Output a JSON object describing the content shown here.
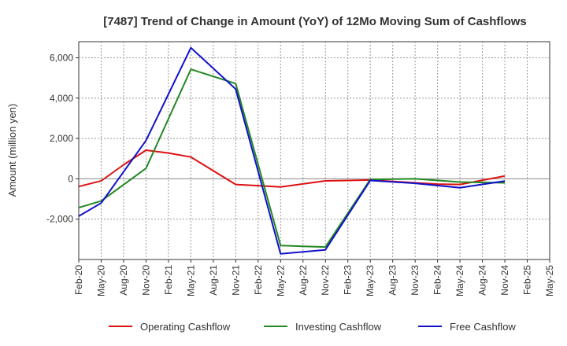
{
  "chart_data": {
    "type": "line",
    "title": "[7487]  Trend of Change in Amount (YoY) of 12Mo Moving Sum of Cashflows",
    "xlabel": "",
    "ylabel": "Amount (million yen)",
    "categories": [
      "Feb-20",
      "May-20",
      "Aug-20",
      "Nov-20",
      "Feb-21",
      "May-21",
      "Aug-21",
      "Nov-21",
      "Feb-22",
      "May-22",
      "Aug-22",
      "Nov-22",
      "Feb-23",
      "May-23",
      "Aug-23",
      "Nov-23",
      "Feb-24",
      "May-24",
      "Aug-24",
      "Nov-24",
      "Feb-25",
      "May-25"
    ],
    "ylim": [
      -4000,
      6800
    ],
    "yticks": [
      -2000,
      0,
      2000,
      4000,
      6000
    ],
    "ytick_labels": [
      "-2,000",
      "0",
      "2,000",
      "4,000",
      "6,000"
    ],
    "grid": true,
    "legend_position": "bottom",
    "series": [
      {
        "name": "Operating Cashflow",
        "color": "#dd1111",
        "values": [
          -380,
          -100,
          700,
          1420,
          1280,
          1080,
          null,
          -280,
          -340,
          -400,
          null,
          -100,
          -80,
          -60,
          null,
          -200,
          -260,
          -280,
          null,
          140,
          null,
          null
        ]
      },
      {
        "name": "Investing Cashflow",
        "color": "#228822",
        "values": [
          -1430,
          -1100,
          null,
          520,
          null,
          5430,
          null,
          4720,
          null,
          -3310,
          null,
          -3380,
          null,
          -30,
          null,
          0,
          null,
          -160,
          null,
          -200,
          null,
          null
        ]
      },
      {
        "name": "Free Cashflow",
        "color": "#1111cc",
        "values": [
          -1850,
          -1200,
          null,
          1900,
          null,
          6500,
          null,
          4450,
          null,
          -3720,
          null,
          -3520,
          null,
          -80,
          null,
          -220,
          null,
          -440,
          null,
          -110,
          null,
          null
        ]
      }
    ]
  }
}
